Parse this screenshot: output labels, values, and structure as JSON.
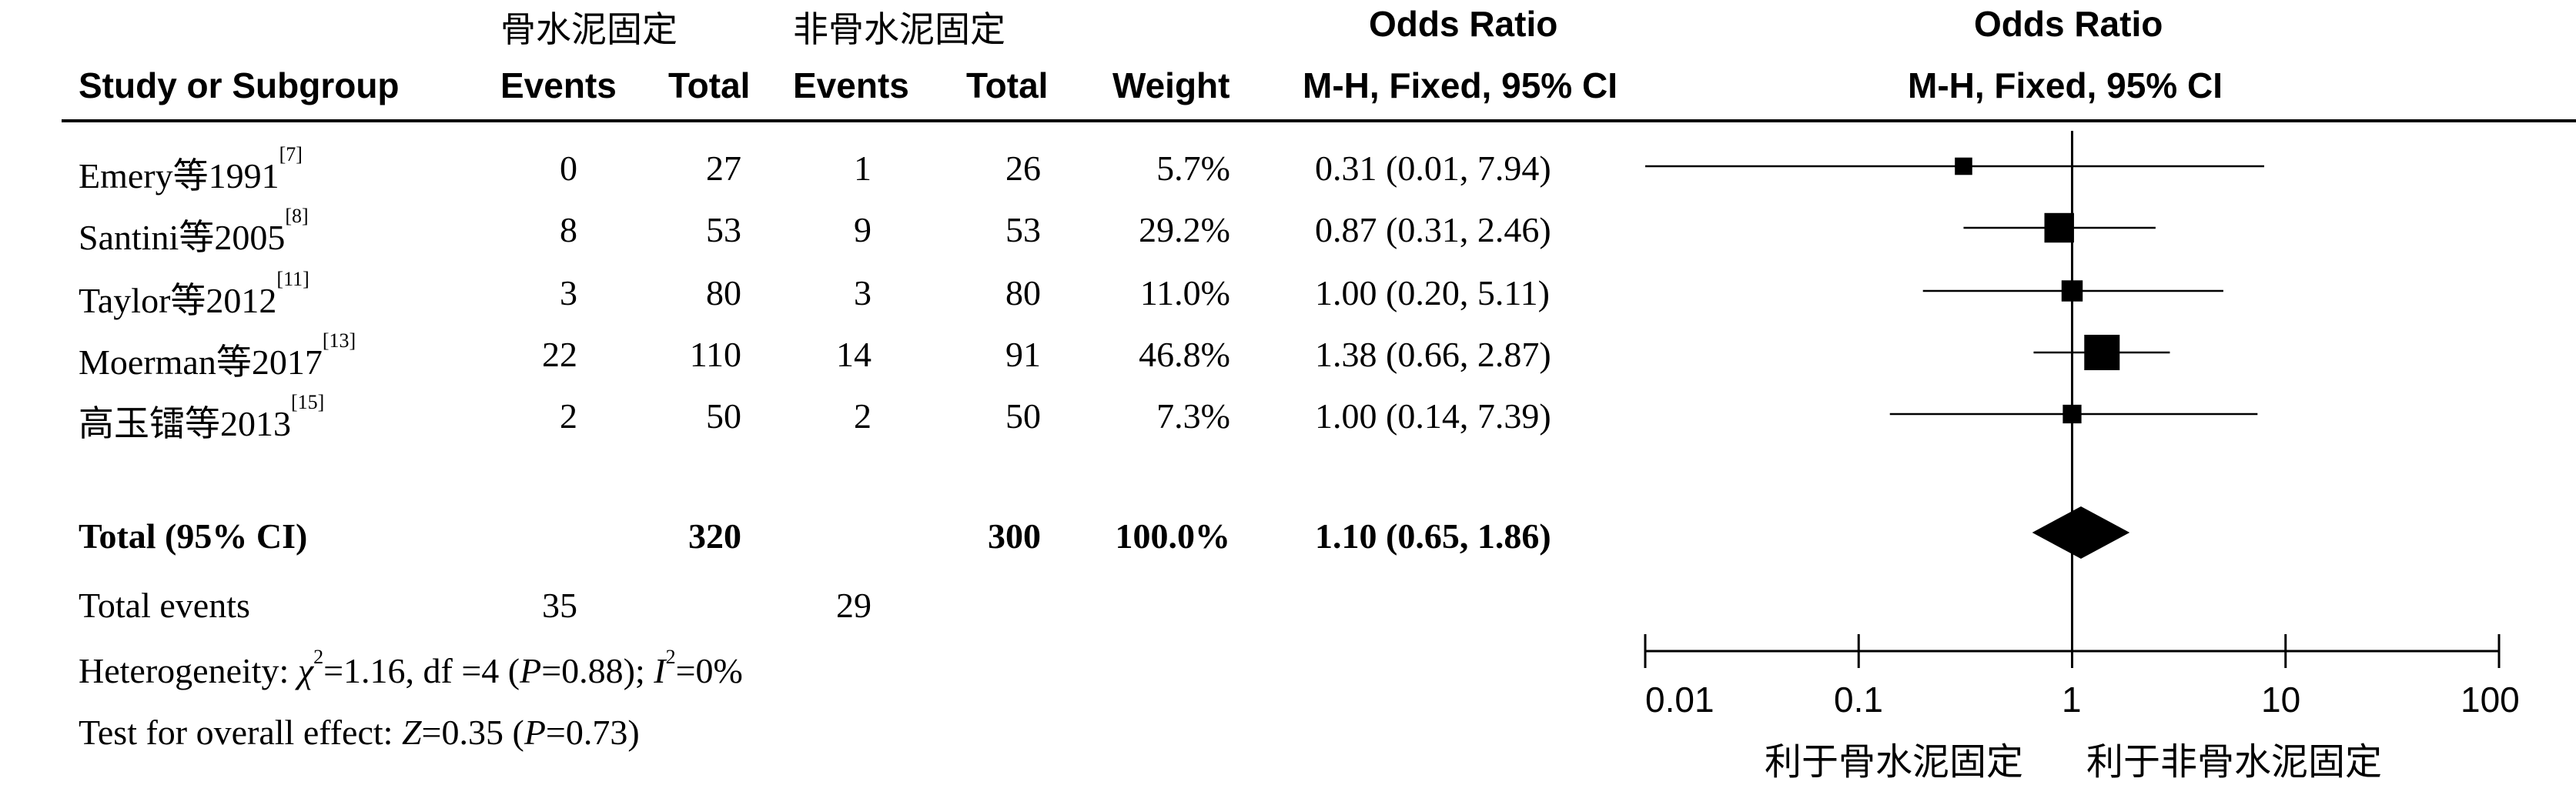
{
  "header": {
    "group1": "骨水泥固定",
    "group2": "非骨水泥固定",
    "odds_ratio_table": "Odds Ratio",
    "odds_ratio_plot": "Odds Ratio",
    "col_study": "Study or Subgroup",
    "col_events1": "Events",
    "col_total1": "Total",
    "col_events2": "Events",
    "col_total2": "Total",
    "col_weight": "Weight",
    "col_method_table": "M-H, Fixed, 95% CI",
    "col_method_plot": "M-H, Fixed, 95% CI"
  },
  "studies": [
    {
      "name": "Emery等1991",
      "ref": "[7]",
      "e1": "0",
      "t1": "27",
      "e2": "1",
      "t2": "26",
      "weight": "5.7%",
      "ci_text": "0.31 (0.01, 7.94)"
    },
    {
      "name": "Santini等2005",
      "ref": "[8]",
      "e1": "8",
      "t1": "53",
      "e2": "9",
      "t2": "53",
      "weight": "29.2%",
      "ci_text": "0.87 (0.31, 2.46)"
    },
    {
      "name": "Taylor等2012",
      "ref": "[11]",
      "e1": "3",
      "t1": "80",
      "e2": "3",
      "t2": "80",
      "weight": "11.0%",
      "ci_text": "1.00 (0.20, 5.11)"
    },
    {
      "name": "Moerman等2017",
      "ref": "[13]",
      "e1": "22",
      "t1": "110",
      "e2": "14",
      "t2": "91",
      "weight": "46.8%",
      "ci_text": "1.38 (0.66, 2.87)"
    },
    {
      "name": "高玉镭等2013",
      "ref": "[15]",
      "e1": "2",
      "t1": "50",
      "e2": "2",
      "t2": "50",
      "weight": "7.3%",
      "ci_text": "1.00 (0.14, 7.39)"
    }
  ],
  "total": {
    "label": "Total (95% CI)",
    "t1": "320",
    "t2": "300",
    "weight": "100.0%",
    "ci_text": "1.10 (0.65, 1.86)"
  },
  "total_events": {
    "label": "Total events",
    "e1": "35",
    "e2": "29"
  },
  "heterogeneity": {
    "prefix": "Heterogeneity: ",
    "chi_symbol": "χ",
    "chi_sup": "2",
    "chi_rest": "=1.16, df =4 (",
    "p_symbol": "P",
    "p_rest": "=0.88); ",
    "i_symbol": "I",
    "i_sup": "2",
    "i_rest": "=0%"
  },
  "overall_effect": {
    "prefix": "Test for overall effect: ",
    "z_symbol": "Z",
    "z_rest": "=0.35 (",
    "p_symbol": "P",
    "p_rest": "=0.73)"
  },
  "axis": {
    "tick_labels": [
      "0.01",
      "0.1",
      "1",
      "10",
      "100"
    ],
    "favours_left": "利于骨水泥固定",
    "favours_right": "利于非骨水泥固定"
  },
  "chart_data": {
    "type": "forest",
    "scale": "log",
    "xlim": [
      0.01,
      100
    ],
    "ticks": [
      0.01,
      0.1,
      1,
      10,
      100
    ],
    "null_line": 1,
    "studies": [
      {
        "name": "Emery等1991",
        "or": 0.31,
        "lower": 0.01,
        "upper": 7.94,
        "weight": 5.7
      },
      {
        "name": "Santini等2005",
        "or": 0.87,
        "lower": 0.31,
        "upper": 2.46,
        "weight": 29.2
      },
      {
        "name": "Taylor等2012",
        "or": 1.0,
        "lower": 0.2,
        "upper": 5.11,
        "weight": 11.0
      },
      {
        "name": "Moerman等2017",
        "or": 1.38,
        "lower": 0.66,
        "upper": 2.87,
        "weight": 46.8
      },
      {
        "name": "高玉镭等2013",
        "or": 1.0,
        "lower": 0.14,
        "upper": 7.39,
        "weight": 7.3
      }
    ],
    "pooled": {
      "name": "Total (95% CI)",
      "or": 1.1,
      "lower": 0.65,
      "upper": 1.86
    }
  }
}
